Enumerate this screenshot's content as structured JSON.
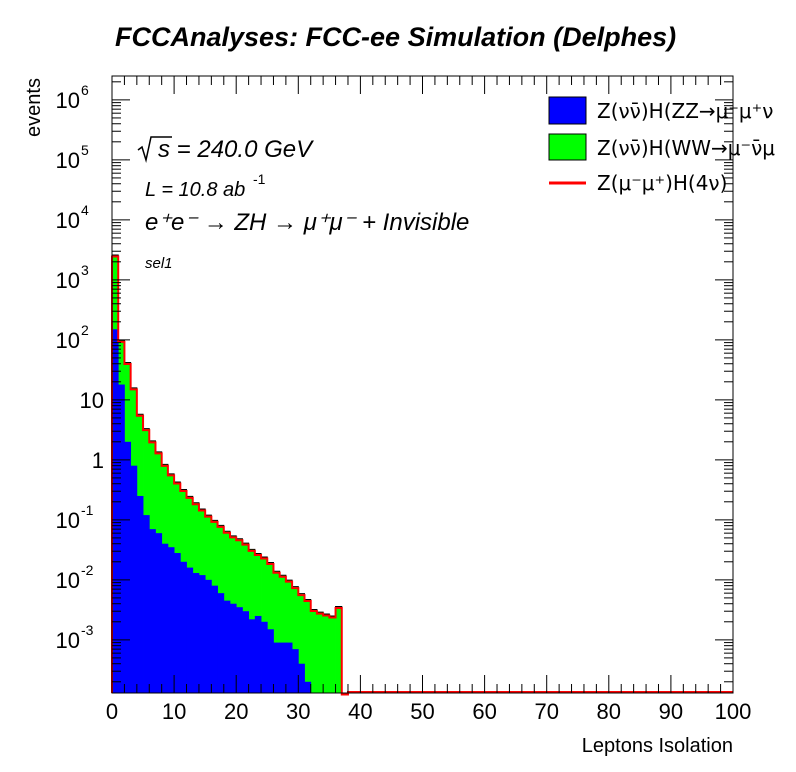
{
  "page": {
    "title": "FCCAnalyses: FCC-ee Simulation (Delphes)"
  },
  "chart_data": {
    "type": "histogram",
    "title": "FCCAnalyses: FCC-ee Simulation (Delphes)",
    "xlabel": "Leptons Isolation",
    "ylabel": "events",
    "xlim": [
      0,
      100
    ],
    "ylim": [
      0.00013,
      2500000
    ],
    "yscale": "log",
    "grid": false,
    "stacked": true,
    "bin_width": 1,
    "x_ticks": [
      "0",
      "10",
      "20",
      "30",
      "40",
      "50",
      "60",
      "70",
      "80",
      "90",
      "100"
    ],
    "y_ticks": [
      {
        "base": "10",
        "exp": "-3",
        "value": 0.001
      },
      {
        "base": "10",
        "exp": "-2",
        "value": 0.01
      },
      {
        "base": "10",
        "exp": "-1",
        "value": 0.1
      },
      {
        "base": "1",
        "exp": "",
        "value": 1
      },
      {
        "base": "10",
        "exp": "",
        "value": 10
      },
      {
        "base": "10",
        "exp": "2",
        "value": 100
      },
      {
        "base": "10",
        "exp": "3",
        "value": 1000
      },
      {
        "base": "10",
        "exp": "4",
        "value": 10000
      },
      {
        "base": "10",
        "exp": "5",
        "value": 100000
      },
      {
        "base": "10",
        "exp": "6",
        "value": 1000000
      }
    ],
    "annotations": {
      "sqrt_s": "s = 240.0 GeV",
      "lumi_prefix": "L = 10.8 ab",
      "lumi_exp": "-1",
      "process": "e⁺e⁻ → ZH → μ⁺μ⁻ + Invisible",
      "selection": "sel1"
    },
    "legend_position": "top-right",
    "series": [
      {
        "name": "Z(νν̄)H(ZZ→μ⁻μ⁺ν",
        "style": "fill",
        "color": "#0000ff",
        "values": [
          150,
          18,
          2.0,
          0.8,
          0.25,
          0.12,
          0.07,
          0.06,
          0.04,
          0.035,
          0.028,
          0.02,
          0.016,
          0.013,
          0.012,
          0.01,
          0.008,
          0.006,
          0.0045,
          0.004,
          0.0035,
          0.003,
          0.0022,
          0.0025,
          0.002,
          0.0015,
          0.0009,
          0.0009,
          0.0009,
          0.0007,
          0.0004,
          0.0002,
          0.0,
          0.0,
          0.0,
          0.0,
          0.0,
          0.0
        ]
      },
      {
        "name": "Z(νν̄)H(WW→μ⁻ν̄μ",
        "style": "fill",
        "color": "#00ff00",
        "values": [
          2450,
          80,
          40,
          15,
          5.5,
          3.2,
          2.0,
          1.3,
          0.8,
          0.55,
          0.4,
          0.3,
          0.23,
          0.18,
          0.14,
          0.11,
          0.09,
          0.075,
          0.06,
          0.05,
          0.045,
          0.038,
          0.03,
          0.025,
          0.022,
          0.018,
          0.013,
          0.011,
          0.009,
          0.007,
          0.0055,
          0.0045,
          0.0032,
          0.0029,
          0.0027,
          0.0025,
          0.0036,
          0.0
        ]
      },
      {
        "name": "Z(μ⁻μ⁺)H(4ν)",
        "style": "line",
        "color": "#ff0000",
        "values": [
          0,
          0,
          0,
          0,
          0,
          0,
          0,
          0,
          0,
          0,
          0,
          0,
          0,
          0,
          0,
          0,
          0,
          0,
          0,
          0,
          0,
          0,
          0,
          0,
          0,
          0,
          0,
          0,
          0,
          0,
          0,
          0,
          0,
          0,
          0,
          0,
          0,
          0
        ]
      }
    ]
  }
}
